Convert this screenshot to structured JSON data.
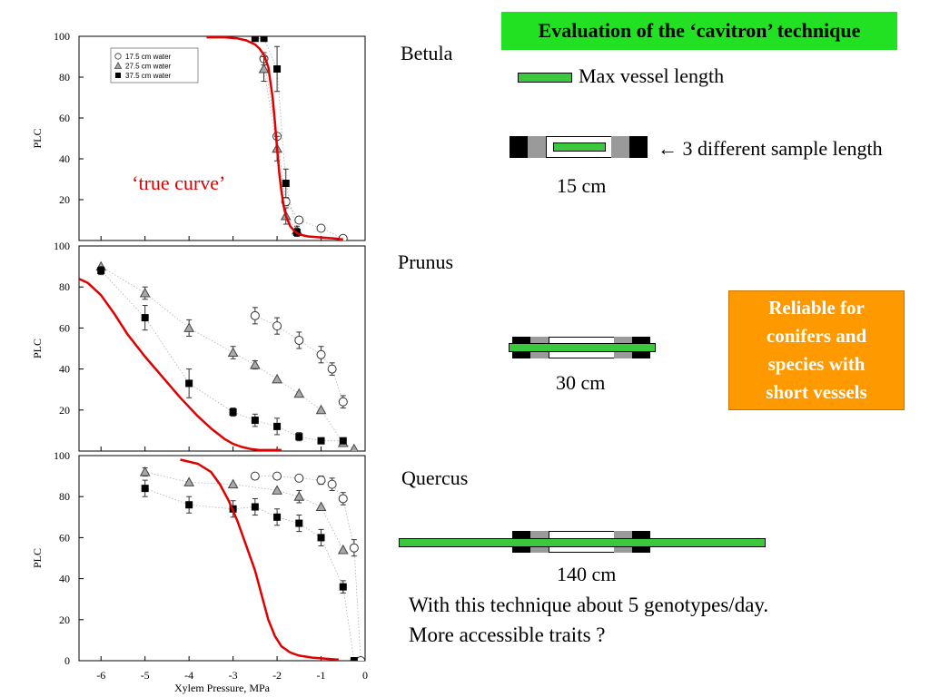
{
  "header": {
    "title": "Evaluation of the ‘cavitron’ technique"
  },
  "legend_text": {
    "max_vessel": "Max vessel length",
    "sample_length": "← 3 different sample length"
  },
  "samples": [
    {
      "species": "Betula",
      "length": "15 cm"
    },
    {
      "species": "Prunus",
      "length": "30 cm"
    },
    {
      "species": "Quercus",
      "length": "140 cm"
    }
  ],
  "note": {
    "lines": [
      "Reliable for",
      "conifers and",
      "species with",
      "short vessels"
    ]
  },
  "conclusion": {
    "line1": "With this technique about 5 genotypes/day.",
    "line2": "More accessible traits ?"
  },
  "colors": {
    "banner": "#22e022",
    "vessel": "#3cc83c",
    "curve": "#e00000",
    "note_box": "#ff9900",
    "clamp_dark": "#000000",
    "clamp_grey": "#9a9a9a"
  },
  "chart_data": [
    {
      "type": "scatter",
      "species": "Betula",
      "xlim": [
        -6.5,
        0
      ],
      "ylim": [
        0,
        100
      ],
      "yticks": [
        20,
        40,
        60,
        80,
        100
      ],
      "ylabel": "PLC",
      "xlabel": "",
      "legend": {
        "placement": "top-left",
        "entries": [
          "17.5 cm water",
          "27.5 cm water",
          "37.5 cm water"
        ]
      },
      "annotation": "‘true curve’",
      "series": [
        {
          "name": "17.5 cm water",
          "marker": "circle",
          "x": [
            -2.3,
            -2.0,
            -1.8,
            -1.5,
            -1.0,
            -0.5
          ],
          "y": [
            89,
            51,
            19,
            10,
            6,
            1
          ],
          "err": [
            3,
            0,
            2,
            0,
            0,
            0
          ]
        },
        {
          "name": "27.5 cm water",
          "marker": "triangle",
          "x": [
            -2.3,
            -2.0,
            -1.8,
            -1.55
          ],
          "y": [
            84,
            45,
            12,
            5
          ],
          "err": [
            6,
            6,
            4,
            2
          ]
        },
        {
          "name": "37.5 cm water",
          "marker": "square",
          "x": [
            -2.5,
            -2.3,
            -2.0,
            -1.8,
            -1.55
          ],
          "y": [
            99,
            99,
            84,
            28,
            4
          ],
          "err": [
            0,
            0,
            11,
            7,
            2
          ]
        }
      ],
      "true_curve": {
        "x": [
          -3.6,
          -3.2,
          -2.9,
          -2.7,
          -2.5,
          -2.4,
          -2.3,
          -2.2,
          -2.1,
          -2.05,
          -2.0,
          -1.95,
          -1.9,
          -1.85,
          -1.8,
          -1.7,
          -1.6,
          -1.5,
          -1.3,
          -1.0,
          -0.7,
          -0.5
        ],
        "y": [
          99.5,
          99.5,
          99,
          98,
          96,
          94,
          91,
          85,
          70,
          58,
          45,
          33,
          24,
          17,
          12,
          7,
          4.5,
          3,
          2,
          1.5,
          1,
          0.5
        ]
      }
    },
    {
      "type": "scatter",
      "species": "Prunus",
      "xlim": [
        -6.5,
        0
      ],
      "ylim": [
        0,
        100
      ],
      "yticks": [
        20,
        40,
        60,
        80,
        100
      ],
      "ylabel": "PLC",
      "xlabel": "",
      "series": [
        {
          "name": "17.5 cm water",
          "marker": "circle",
          "x": [
            -2.5,
            -2.0,
            -1.5,
            -1.0,
            -0.75,
            -0.5
          ],
          "y": [
            66,
            61,
            54,
            47,
            40,
            24
          ],
          "err": [
            4,
            4,
            4,
            4,
            3,
            3
          ]
        },
        {
          "name": "27.5 cm water",
          "marker": "triangle",
          "x": [
            -6.0,
            -5.0,
            -4.0,
            -3.0,
            -2.5,
            -2.0,
            -1.5,
            -1.0,
            -0.5,
            -0.25
          ],
          "y": [
            90,
            77,
            60,
            48,
            42,
            35,
            28,
            20,
            4,
            1
          ],
          "err": [
            0,
            3,
            4,
            3,
            2,
            0,
            0,
            0,
            0,
            0
          ]
        },
        {
          "name": "37.5 cm water",
          "marker": "square",
          "x": [
            -6.0,
            -5.0,
            -4.0,
            -3.0,
            -2.5,
            -2.0,
            -1.5,
            -1.0,
            -0.5
          ],
          "y": [
            88,
            65,
            33,
            19,
            15,
            12,
            7,
            5,
            5
          ],
          "err": [
            2,
            6,
            7,
            2,
            3,
            4,
            2,
            0,
            0
          ]
        }
      ],
      "true_curve": {
        "x": [
          -6.5,
          -6.3,
          -6.0,
          -5.7,
          -5.4,
          -5.0,
          -4.6,
          -4.2,
          -3.8,
          -3.5,
          -3.2,
          -3.0,
          -2.8,
          -2.6,
          -2.4,
          -2.2,
          -2.0,
          -1.9
        ],
        "y": [
          84,
          82,
          76,
          67,
          57,
          46,
          36,
          26,
          17,
          11,
          6,
          3.5,
          2,
          1,
          0.5,
          0.5,
          0.5,
          0.5
        ]
      }
    },
    {
      "type": "scatter",
      "species": "Quercus",
      "xlim": [
        -6.5,
        0
      ],
      "ylim": [
        0,
        100
      ],
      "yticks": [
        0,
        20,
        40,
        60,
        80,
        100
      ],
      "xticks": [
        -6,
        -5,
        -4,
        -3,
        -2,
        -1,
        0
      ],
      "ylabel": "PLC",
      "xlabel": "Xylem Pressure, MPa",
      "series": [
        {
          "name": "17.5 cm water",
          "marker": "circle",
          "x": [
            -2.5,
            -2.0,
            -1.5,
            -1.0,
            -0.75,
            -0.5,
            -0.25,
            -0.1
          ],
          "y": [
            90,
            90,
            89,
            88,
            86,
            79,
            55,
            0
          ],
          "err": [
            0,
            0,
            0,
            2,
            3,
            3,
            4,
            0
          ]
        },
        {
          "name": "27.5 cm water",
          "marker": "triangle",
          "x": [
            -5.0,
            -4.0,
            -3.0,
            -2.0,
            -1.5,
            -1.0,
            -0.5
          ],
          "y": [
            92,
            87,
            86,
            83,
            80,
            75,
            54
          ],
          "err": [
            2,
            0,
            0,
            0,
            3,
            0,
            0
          ]
        },
        {
          "name": "37.5 cm water",
          "marker": "square",
          "x": [
            -5.0,
            -4.0,
            -3.0,
            -2.5,
            -2.0,
            -1.5,
            -1.0,
            -0.5,
            -0.25
          ],
          "y": [
            84,
            76,
            74,
            75,
            70,
            67,
            60,
            36,
            0
          ],
          "err": [
            4,
            4,
            4,
            4,
            4,
            4,
            4,
            3,
            0
          ]
        }
      ],
      "true_curve": {
        "x": [
          -4.2,
          -3.8,
          -3.5,
          -3.3,
          -3.1,
          -2.9,
          -2.7,
          -2.5,
          -2.35,
          -2.2,
          -2.05,
          -1.9,
          -1.7,
          -1.5,
          -1.2,
          -0.9,
          -0.6
        ],
        "y": [
          98,
          96,
          92,
          86,
          78,
          68,
          56,
          44,
          32,
          20,
          12,
          7,
          4,
          2.5,
          1.5,
          1,
          0.5
        ]
      }
    }
  ]
}
